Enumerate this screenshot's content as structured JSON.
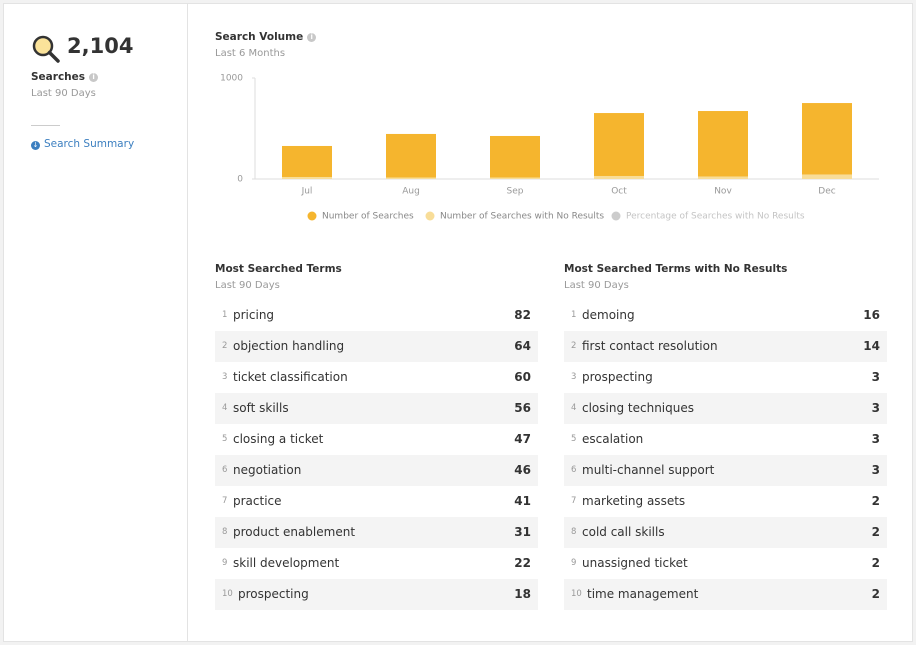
{
  "sidebar": {
    "total": "2,104",
    "label": "Searches",
    "subtitle": "Last 90 Days",
    "link": "Search Summary"
  },
  "chart_data": {
    "type": "bar",
    "title": "Search Volume",
    "subtitle": "Last 6 Months",
    "categories": [
      "Jul",
      "Aug",
      "Sep",
      "Oct",
      "Nov",
      "Dec"
    ],
    "series": [
      {
        "name": "Number of Searches",
        "color": "#f5b52e",
        "values": [
          327,
          446,
          426,
          653,
          673,
          752
        ]
      },
      {
        "name": "Number of Searches with No Results",
        "color": "#f8dd98",
        "values": [
          20,
          15,
          15,
          30,
          25,
          45
        ]
      },
      {
        "name": "Percentage of Searches with No Results",
        "color": "#cccccc",
        "values": [
          null,
          null,
          null,
          null,
          null,
          null
        ]
      }
    ],
    "ylim": [
      0,
      1000
    ],
    "yticks": [
      0,
      1000
    ],
    "grid": false
  },
  "tables": [
    {
      "title": "Most Searched Terms",
      "subtitle": "Last 90 Days",
      "rows": [
        {
          "rank": 1,
          "term": "pricing",
          "count": 82
        },
        {
          "rank": 2,
          "term": "objection handling",
          "count": 64
        },
        {
          "rank": 3,
          "term": "ticket classification",
          "count": 60
        },
        {
          "rank": 4,
          "term": "soft skills",
          "count": 56
        },
        {
          "rank": 5,
          "term": "closing a ticket",
          "count": 47
        },
        {
          "rank": 6,
          "term": "negotiation",
          "count": 46
        },
        {
          "rank": 7,
          "term": "practice",
          "count": 41
        },
        {
          "rank": 8,
          "term": "product enablement",
          "count": 31
        },
        {
          "rank": 9,
          "term": "skill development",
          "count": 22
        },
        {
          "rank": 10,
          "term": "prospecting",
          "count": 18
        }
      ]
    },
    {
      "title": "Most Searched Terms with No Results",
      "subtitle": "Last 90 Days",
      "rows": [
        {
          "rank": 1,
          "term": "demoing",
          "count": 16
        },
        {
          "rank": 2,
          "term": "first contact resolution",
          "count": 14
        },
        {
          "rank": 3,
          "term": "prospecting",
          "count": 3
        },
        {
          "rank": 4,
          "term": "closing techniques",
          "count": 3
        },
        {
          "rank": 5,
          "term": "escalation",
          "count": 3
        },
        {
          "rank": 6,
          "term": "multi-channel support",
          "count": 3
        },
        {
          "rank": 7,
          "term": "marketing assets",
          "count": 2
        },
        {
          "rank": 8,
          "term": "cold call skills",
          "count": 2
        },
        {
          "rank": 9,
          "term": "unassigned ticket",
          "count": 2
        },
        {
          "rank": 10,
          "term": "time management",
          "count": 2
        }
      ]
    }
  ]
}
